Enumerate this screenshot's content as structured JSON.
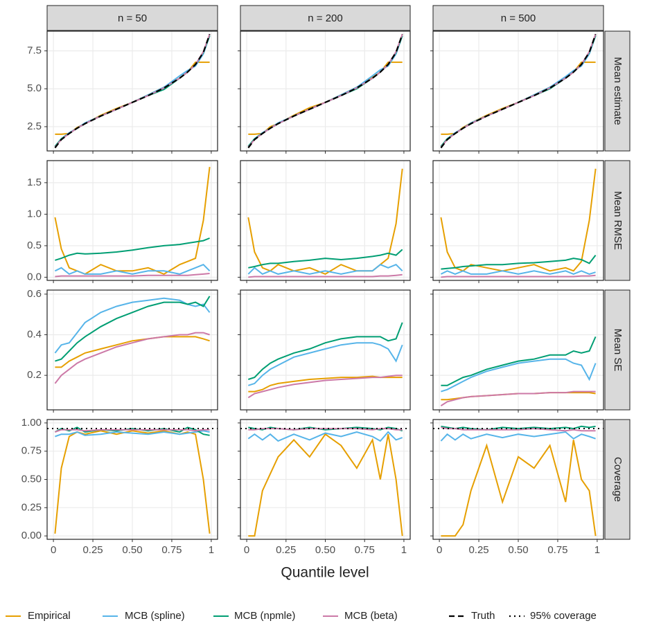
{
  "chart_data": {
    "type": "line",
    "x_label": "Quantile level",
    "x": [
      0.01,
      0.05,
      0.1,
      0.15,
      0.2,
      0.3,
      0.4,
      0.5,
      0.6,
      0.7,
      0.8,
      0.85,
      0.9,
      0.95,
      0.99
    ],
    "xlim": [
      -0.04,
      1.04
    ],
    "xticks": [
      0,
      0.25,
      {
        "value": 0.5,
        "label": "0.50"
      },
      0.75,
      1
    ],
    "columns": [
      "n = 50",
      "n = 200",
      "n = 500"
    ],
    "series": [
      {
        "name": "Empirical",
        "color": "#E69F00"
      },
      {
        "name": "MCB (spline)",
        "color": "#56B4E9"
      },
      {
        "name": "MCB (npmle)",
        "color": "#009E73"
      },
      {
        "name": "MCB (beta)",
        "color": "#CC79A7"
      }
    ],
    "reference": [
      {
        "name": "Truth",
        "dash": "dashed",
        "color": "#000000"
      },
      {
        "name": "95% coverage",
        "dash": "dotted",
        "color": "#000000"
      }
    ],
    "rows": [
      {
        "label": "Mean estimate",
        "ylim": [
          0.9,
          8.8
        ],
        "yticks": [
          2.5,
          {
            "value": 5,
            "label": "5.0"
          },
          7.5
        ],
        "truth": [
          1.1,
          1.65,
          2.05,
          2.4,
          2.7,
          3.2,
          3.65,
          4.1,
          4.55,
          5.05,
          5.7,
          6.1,
          6.6,
          7.4,
          8.6
        ],
        "panels": [
          [
            [
              2.0,
              2.0,
              2.05,
              2.45,
              2.7,
              3.25,
              3.7,
              4.1,
              4.6,
              5.1,
              5.7,
              6.1,
              6.75,
              6.75,
              6.75
            ],
            [
              1.2,
              1.7,
              2.1,
              2.4,
              2.75,
              3.2,
              3.65,
              4.1,
              4.6,
              5.1,
              5.85,
              6.2,
              6.5,
              7.3,
              8.5
            ],
            [
              1.2,
              1.7,
              2.05,
              2.4,
              2.7,
              3.2,
              3.65,
              4.1,
              4.55,
              4.95,
              5.7,
              6.1,
              6.6,
              7.4,
              8.5
            ],
            [
              1.15,
              1.65,
              2.05,
              2.4,
              2.7,
              3.2,
              3.65,
              4.1,
              4.55,
              5.05,
              5.7,
              6.1,
              6.6,
              7.45,
              8.6
            ]
          ],
          [
            [
              2.0,
              2.0,
              2.05,
              2.5,
              2.7,
              3.25,
              3.75,
              4.1,
              4.6,
              5.1,
              5.75,
              6.1,
              6.75,
              6.75,
              6.75
            ],
            [
              1.2,
              1.7,
              2.1,
              2.4,
              2.75,
              3.2,
              3.65,
              4.1,
              4.6,
              5.1,
              5.85,
              6.25,
              6.5,
              7.3,
              8.5
            ],
            [
              1.2,
              1.7,
              2.05,
              2.4,
              2.7,
              3.2,
              3.65,
              4.1,
              4.55,
              5.0,
              5.7,
              6.1,
              6.6,
              7.4,
              8.5
            ],
            [
              1.15,
              1.65,
              2.05,
              2.4,
              2.7,
              3.2,
              3.65,
              4.1,
              4.55,
              5.05,
              5.7,
              6.1,
              6.6,
              7.45,
              8.6
            ]
          ],
          [
            [
              2.0,
              2.0,
              2.05,
              2.45,
              2.75,
              3.25,
              3.7,
              4.1,
              4.6,
              5.1,
              5.7,
              6.1,
              6.75,
              6.75,
              6.75
            ],
            [
              1.2,
              1.7,
              2.1,
              2.4,
              2.75,
              3.2,
              3.65,
              4.1,
              4.6,
              5.1,
              5.8,
              6.2,
              6.5,
              7.3,
              8.5
            ],
            [
              1.2,
              1.7,
              2.05,
              2.4,
              2.7,
              3.2,
              3.65,
              4.1,
              4.55,
              5.0,
              5.7,
              6.1,
              6.6,
              7.4,
              8.5
            ],
            [
              1.15,
              1.65,
              2.05,
              2.4,
              2.7,
              3.2,
              3.65,
              4.1,
              4.55,
              5.05,
              5.7,
              6.1,
              6.6,
              7.45,
              8.6
            ]
          ]
        ]
      },
      {
        "label": "Mean RMSE",
        "ylim": [
          -0.05,
          1.85
        ],
        "yticks": [
          {
            "value": 0,
            "label": "0.0"
          },
          0.5,
          {
            "value": 1,
            "label": "1.0"
          },
          1.5
        ],
        "panels": [
          [
            [
              0.95,
              0.45,
              0.15,
              0.1,
              0.05,
              0.2,
              0.1,
              0.1,
              0.15,
              0.05,
              0.2,
              0.25,
              0.3,
              0.9,
              1.75
            ],
            [
              0.1,
              0.15,
              0.05,
              0.1,
              0.05,
              0.05,
              0.1,
              0.05,
              0.1,
              0.1,
              0.05,
              0.1,
              0.15,
              0.2,
              0.1
            ],
            [
              0.27,
              0.3,
              0.35,
              0.38,
              0.37,
              0.38,
              0.4,
              0.43,
              0.47,
              0.5,
              0.52,
              0.54,
              0.56,
              0.58,
              0.62
            ],
            [
              0.01,
              0.02,
              0.02,
              0.02,
              0.02,
              0.02,
              0.02,
              0.02,
              0.03,
              0.03,
              0.03,
              0.03,
              0.04,
              0.05,
              0.06
            ]
          ],
          [
            [
              0.95,
              0.4,
              0.15,
              0.1,
              0.2,
              0.1,
              0.15,
              0.05,
              0.2,
              0.1,
              0.1,
              0.2,
              0.3,
              0.85,
              1.72
            ],
            [
              0.05,
              0.15,
              0.05,
              0.1,
              0.05,
              0.1,
              0.05,
              0.1,
              0.05,
              0.1,
              0.1,
              0.2,
              0.15,
              0.2,
              0.1
            ],
            [
              0.15,
              0.17,
              0.2,
              0.22,
              0.22,
              0.25,
              0.27,
              0.3,
              0.28,
              0.3,
              0.33,
              0.35,
              0.38,
              0.35,
              0.44
            ],
            [
              0,
              0.01,
              0.01,
              0.01,
              0.01,
              0.01,
              0.01,
              0.01,
              0.01,
              0.01,
              0.01,
              0.02,
              0.02,
              0.03,
              0.04
            ]
          ],
          [
            [
              0.95,
              0.4,
              0.15,
              0.1,
              0.2,
              0.15,
              0.1,
              0.15,
              0.2,
              0.1,
              0.15,
              0.1,
              0.25,
              0.9,
              1.72
            ],
            [
              0.05,
              0.1,
              0.05,
              0.1,
              0.05,
              0.05,
              0.1,
              0.05,
              0.1,
              0.05,
              0.1,
              0.05,
              0.1,
              0.05,
              0.08
            ],
            [
              0.13,
              0.14,
              0.15,
              0.17,
              0.18,
              0.2,
              0.2,
              0.22,
              0.23,
              0.25,
              0.27,
              0.3,
              0.28,
              0.22,
              0.35
            ],
            [
              0,
              0.01,
              0.01,
              0.01,
              0.01,
              0.01,
              0.01,
              0.01,
              0.01,
              0.01,
              0.01,
              0.01,
              0.02,
              0.02,
              0.03
            ]
          ]
        ]
      },
      {
        "label": "Mean SE",
        "ylim": [
          0.03,
          0.62
        ],
        "yticks": [
          0.2,
          0.4,
          0.6
        ],
        "panels": [
          [
            [
              0.24,
              0.24,
              0.27,
              0.29,
              0.31,
              0.33,
              0.35,
              0.37,
              0.38,
              0.39,
              0.39,
              0.39,
              0.39,
              0.38,
              0.37
            ],
            [
              0.31,
              0.35,
              0.36,
              0.41,
              0.46,
              0.51,
              0.54,
              0.56,
              0.57,
              0.58,
              0.57,
              0.55,
              0.54,
              0.55,
              0.51
            ],
            [
              0.27,
              0.28,
              0.32,
              0.36,
              0.39,
              0.44,
              0.48,
              0.51,
              0.54,
              0.56,
              0.56,
              0.55,
              0.56,
              0.54,
              0.59
            ],
            [
              0.16,
              0.2,
              0.23,
              0.26,
              0.28,
              0.31,
              0.34,
              0.36,
              0.38,
              0.39,
              0.4,
              0.4,
              0.41,
              0.41,
              0.4
            ]
          ],
          [
            [
              0.12,
              0.12,
              0.13,
              0.15,
              0.16,
              0.17,
              0.18,
              0.185,
              0.19,
              0.19,
              0.195,
              0.19,
              0.19,
              0.19,
              0.19
            ],
            [
              0.15,
              0.16,
              0.2,
              0.23,
              0.25,
              0.29,
              0.31,
              0.33,
              0.35,
              0.36,
              0.36,
              0.35,
              0.33,
              0.27,
              0.35
            ],
            [
              0.18,
              0.19,
              0.23,
              0.26,
              0.28,
              0.31,
              0.33,
              0.36,
              0.38,
              0.39,
              0.39,
              0.39,
              0.37,
              0.38,
              0.46
            ],
            [
              0.09,
              0.11,
              0.12,
              0.13,
              0.14,
              0.155,
              0.165,
              0.175,
              0.18,
              0.185,
              0.19,
              0.19,
              0.195,
              0.2,
              0.2
            ]
          ],
          [
            [
              0.08,
              0.08,
              0.085,
              0.09,
              0.095,
              0.1,
              0.105,
              0.11,
              0.11,
              0.115,
              0.115,
              0.115,
              0.115,
              0.115,
              0.11
            ],
            [
              0.12,
              0.13,
              0.15,
              0.17,
              0.19,
              0.22,
              0.24,
              0.26,
              0.27,
              0.28,
              0.28,
              0.26,
              0.25,
              0.18,
              0.26
            ],
            [
              0.15,
              0.15,
              0.17,
              0.19,
              0.2,
              0.23,
              0.25,
              0.27,
              0.28,
              0.3,
              0.3,
              0.32,
              0.31,
              0.32,
              0.39
            ],
            [
              0.05,
              0.07,
              0.08,
              0.09,
              0.095,
              0.1,
              0.105,
              0.11,
              0.11,
              0.115,
              0.115,
              0.12,
              0.12,
              0.12,
              0.12
            ]
          ]
        ]
      },
      {
        "label": "Coverage",
        "ylim": [
          -0.03,
          1.03
        ],
        "yticks": [
          {
            "value": 0,
            "label": "0.00"
          },
          0.25,
          {
            "value": 0.5,
            "label": "0.50"
          },
          0.75,
          {
            "value": 1,
            "label": "1.00"
          }
        ],
        "target": 0.95,
        "panels": [
          [
            [
              0.02,
              0.6,
              0.88,
              0.92,
              0.9,
              0.93,
              0.9,
              0.93,
              0.91,
              0.93,
              0.9,
              0.92,
              0.9,
              0.5,
              0.02
            ],
            [
              0.88,
              0.9,
              0.9,
              0.92,
              0.89,
              0.9,
              0.92,
              0.91,
              0.9,
              0.92,
              0.9,
              0.91,
              0.92,
              0.93,
              0.92
            ],
            [
              0.92,
              0.95,
              0.93,
              0.96,
              0.92,
              0.94,
              0.93,
              0.95,
              0.93,
              0.95,
              0.92,
              0.96,
              0.94,
              0.9,
              0.89
            ],
            [
              0.92,
              0.94,
              0.94,
              0.94,
              0.93,
              0.94,
              0.94,
              0.94,
              0.94,
              0.94,
              0.94,
              0.94,
              0.93,
              0.94,
              0.94
            ]
          ],
          [
            [
              0,
              0,
              0.4,
              0.55,
              0.7,
              0.85,
              0.7,
              0.9,
              0.8,
              0.6,
              0.85,
              0.5,
              0.9,
              0.5,
              0
            ],
            [
              0.86,
              0.9,
              0.85,
              0.9,
              0.84,
              0.9,
              0.85,
              0.91,
              0.88,
              0.92,
              0.88,
              0.84,
              0.92,
              0.85,
              0.87
            ],
            [
              0.96,
              0.95,
              0.94,
              0.96,
              0.95,
              0.94,
              0.96,
              0.94,
              0.95,
              0.96,
              0.95,
              0.94,
              0.96,
              0.95,
              0.93
            ],
            [
              0.94,
              0.94,
              0.95,
              0.95,
              0.95,
              0.94,
              0.95,
              0.95,
              0.95,
              0.95,
              0.94,
              0.95,
              0.95,
              0.94,
              0.94
            ]
          ],
          [
            [
              0,
              0,
              0,
              0.1,
              0.4,
              0.8,
              0.3,
              0.7,
              0.6,
              0.8,
              0.3,
              0.85,
              0.5,
              0.4,
              0
            ],
            [
              0.84,
              0.9,
              0.85,
              0.9,
              0.86,
              0.9,
              0.87,
              0.9,
              0.88,
              0.9,
              0.92,
              0.86,
              0.9,
              0.88,
              0.86
            ],
            [
              0.97,
              0.96,
              0.95,
              0.96,
              0.95,
              0.94,
              0.96,
              0.95,
              0.96,
              0.95,
              0.96,
              0.95,
              0.97,
              0.96,
              0.97
            ],
            [
              0.96,
              0.95,
              0.95,
              0.94,
              0.94,
              0.94,
              0.94,
              0.94,
              0.95,
              0.94,
              0.93,
              0.94,
              0.93,
              0.93,
              0.93
            ]
          ]
        ]
      }
    ]
  }
}
